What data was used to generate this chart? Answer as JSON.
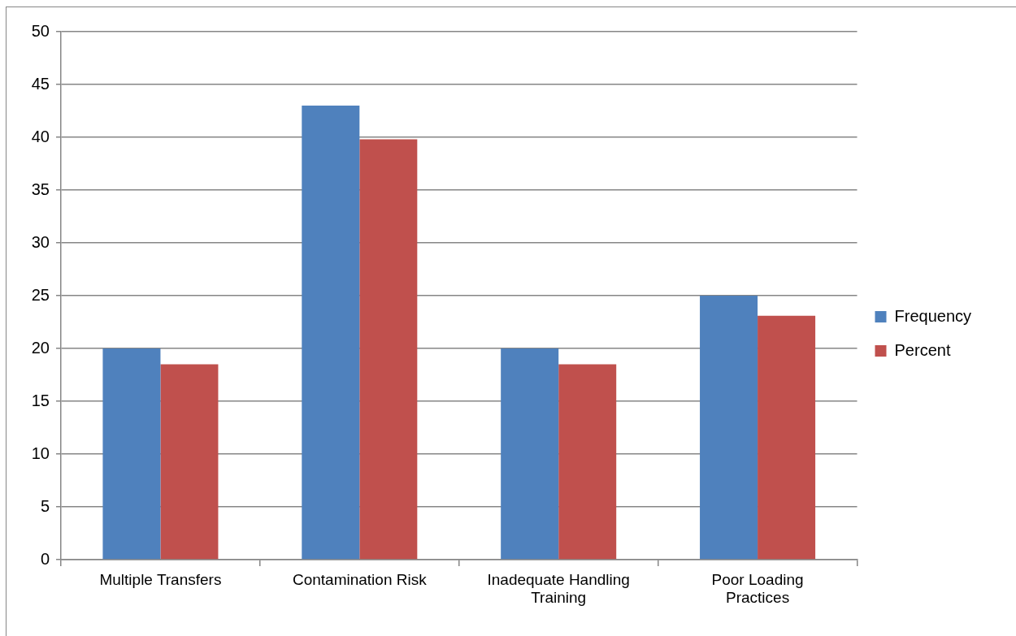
{
  "chart_data": {
    "type": "bar",
    "categories": [
      "Multiple Transfers",
      "Contamination Risk",
      "Inadequate Handling Training",
      "Poor Loading Practices"
    ],
    "series": [
      {
        "name": "Frequency",
        "color": "#4f81bd",
        "values": [
          20,
          43,
          20,
          25
        ]
      },
      {
        "name": "Percent",
        "color": "#c0504d",
        "values": [
          18.5,
          39.8,
          18.5,
          23.1
        ]
      }
    ],
    "ylim": [
      0,
      50
    ],
    "yticks": [
      0,
      5,
      10,
      15,
      20,
      25,
      30,
      35,
      40,
      45,
      50
    ],
    "grid": "y",
    "legend": "right"
  }
}
